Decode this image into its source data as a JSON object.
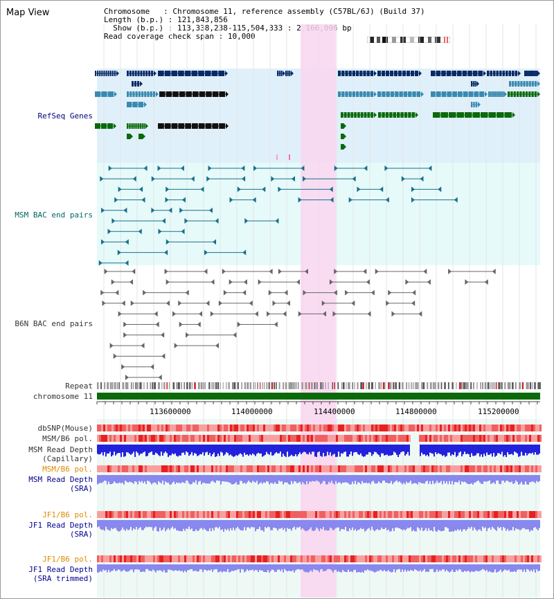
{
  "title": "Map View",
  "info": {
    "chromosome_label": "Chromosome",
    "chromosome_value": "Chromosome 11, reference assembly (C57BL/6J) (Build 37)",
    "length_label": "Length (b.p.)",
    "length_value": "121,843,856",
    "show_label": "Show (b.p.)",
    "show_value": "113,338,238-115,504,333 : 2,166,096 bp",
    "coverage_label": "Read coverage check span",
    "coverage_value": "10,000"
  },
  "tracks": {
    "refseq": "RefSeq Genes",
    "msm_bac": "MSM BAC end pairs",
    "b6n_bac": "B6N BAC end pairs",
    "repeat": "Repeat",
    "chromosome": "chromosome 11",
    "dbsnp": "dbSNP(Mouse)",
    "msm_b6_pol_1": "MSM/B6 pol.",
    "msm_depth_cap_1": "MSM Read Depth",
    "msm_depth_cap_2": "(Capillary)",
    "msm_b6_pol_2": "MSM/B6 pol.",
    "msm_depth_sra_1": "MSM Read Depth",
    "msm_depth_sra_2": "(SRA)",
    "jf1_b6_pol_1": "JF1/B6 pol.",
    "jf1_depth_sra_1": "JF1 Read Depth",
    "jf1_depth_sra_2": "(SRA)",
    "jf1_b6_pol_2": "JF1/B6 pol.",
    "jf1_depth_trim_1": "JF1 Read Depth",
    "jf1_depth_trim_2": "(SRA trimmed)"
  },
  "axis": {
    "ticks": [
      "113600000",
      "114000000",
      "114400000",
      "114800000",
      "115200000"
    ]
  },
  "colors": {
    "refseq_bg": "#dff0fa",
    "bac_bg": "#e6fafa",
    "highlight": "#f9d6f0",
    "gene_dark": "#0a2a66",
    "gene_mid": "#3a8ab0",
    "gene_green": "#0a6a0a",
    "chrom_green": "#0a6a0a",
    "depth_blue": "#2222dd",
    "depth_light": "#8888ee",
    "snp_red": "#ee4444"
  }
}
